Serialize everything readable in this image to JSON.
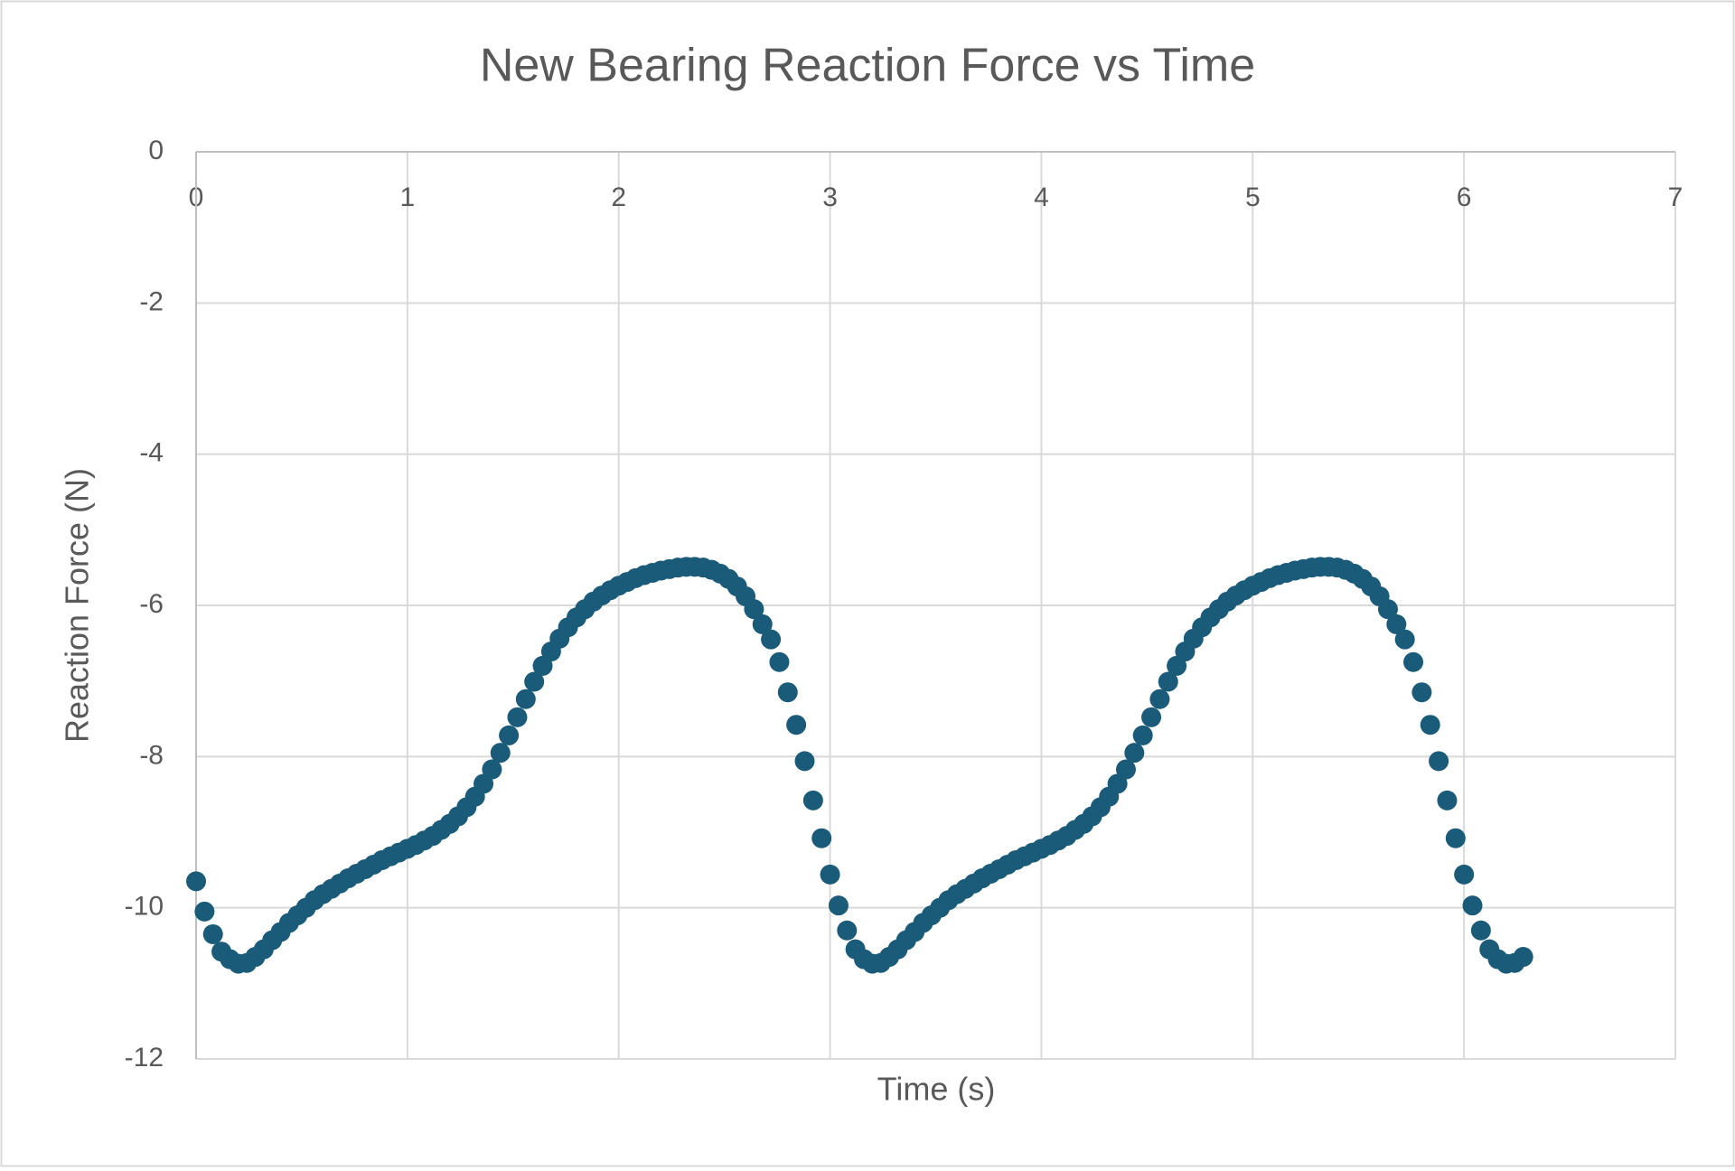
{
  "chart_data": {
    "type": "scatter",
    "title": "New Bearing Reaction Force vs Time",
    "x_label": "Time (s)",
    "y_label": "Reaction Force (N)",
    "color": "#1a5b79",
    "grid": true,
    "xlim": [
      0,
      7
    ],
    "xticks": [
      0,
      1,
      2,
      3,
      4,
      5,
      6,
      7
    ],
    "ylim": [
      -12,
      0
    ],
    "yticks": [
      -12,
      -10,
      -8,
      -6,
      -4,
      -2,
      0
    ],
    "x": [
      0,
      0.04,
      0.08,
      0.12,
      0.16,
      0.2,
      0.24,
      0.28,
      0.32,
      0.36,
      0.4,
      0.44,
      0.48,
      0.52,
      0.56,
      0.6,
      0.64,
      0.68,
      0.72,
      0.76,
      0.8,
      0.84,
      0.88,
      0.92,
      0.96,
      1,
      1.04,
      1.08,
      1.12,
      1.16,
      1.2,
      1.24,
      1.28,
      1.32,
      1.36,
      1.4,
      1.44,
      1.48,
      1.52,
      1.56,
      1.6,
      1.64,
      1.68,
      1.72,
      1.76,
      1.8,
      1.84,
      1.88,
      1.92,
      1.96,
      2,
      2.04,
      2.08,
      2.12,
      2.16,
      2.2,
      2.24,
      2.28,
      2.32,
      2.36,
      2.4,
      2.44,
      2.48,
      2.52,
      2.56,
      2.6,
      2.64,
      2.68,
      2.72,
      2.76,
      2.8,
      2.84,
      2.88,
      2.92,
      2.96,
      3,
      3.04,
      3.08,
      3.12,
      3.16,
      3.2,
      3.24,
      3.28,
      3.32,
      3.36,
      3.4,
      3.44,
      3.48,
      3.52,
      3.56,
      3.6,
      3.64,
      3.68,
      3.72,
      3.76,
      3.8,
      3.84,
      3.88,
      3.92,
      3.96,
      4,
      4.04,
      4.08,
      4.12,
      4.16,
      4.2,
      4.24,
      4.28,
      4.32,
      4.36,
      4.4,
      4.44,
      4.48,
      4.52,
      4.56,
      4.6,
      4.64,
      4.68,
      4.72,
      4.76,
      4.8,
      4.84,
      4.88,
      4.92,
      4.96,
      5,
      5.04,
      5.08,
      5.12,
      5.16,
      5.2,
      5.24,
      5.28,
      5.32,
      5.36,
      5.4,
      5.44,
      5.48,
      5.52,
      5.56,
      5.6,
      5.64,
      5.68,
      5.72,
      5.76,
      5.8,
      5.84,
      5.88,
      5.92,
      5.96,
      6,
      6.04,
      6.08,
      6.12,
      6.16,
      6.2,
      6.24,
      6.28
    ],
    "values": [
      -9.65,
      -10.05,
      -10.35,
      -10.58,
      -10.68,
      -10.74,
      -10.73,
      -10.65,
      -10.55,
      -10.43,
      -10.32,
      -10.2,
      -10.1,
      -10.0,
      -9.9,
      -9.82,
      -9.75,
      -9.68,
      -9.61,
      -9.55,
      -9.49,
      -9.43,
      -9.37,
      -9.32,
      -9.27,
      -9.22,
      -9.17,
      -9.11,
      -9.05,
      -8.97,
      -8.89,
      -8.79,
      -8.67,
      -8.53,
      -8.36,
      -8.17,
      -7.95,
      -7.72,
      -7.48,
      -7.24,
      -7.01,
      -6.8,
      -6.61,
      -6.44,
      -6.29,
      -6.16,
      -6.05,
      -5.95,
      -5.87,
      -5.8,
      -5.74,
      -5.69,
      -5.64,
      -5.6,
      -5.57,
      -5.54,
      -5.52,
      -5.5,
      -5.49,
      -5.49,
      -5.5,
      -5.53,
      -5.58,
      -5.65,
      -5.75,
      -5.88,
      -6.05,
      -6.25,
      -6.45,
      -6.75,
      -7.15,
      -7.58,
      -8.06,
      -8.58,
      -9.08,
      -9.56,
      -9.97,
      -10.3,
      -10.55,
      -10.68,
      -10.74,
      -10.73,
      -10.65,
      -10.55,
      -10.43,
      -10.32,
      -10.2,
      -10.1,
      -10.0,
      -9.9,
      -9.82,
      -9.75,
      -9.68,
      -9.61,
      -9.55,
      -9.49,
      -9.43,
      -9.37,
      -9.32,
      -9.27,
      -9.22,
      -9.17,
      -9.11,
      -9.05,
      -8.97,
      -8.89,
      -8.79,
      -8.67,
      -8.53,
      -8.36,
      -8.17,
      -7.95,
      -7.72,
      -7.48,
      -7.24,
      -7.01,
      -6.8,
      -6.61,
      -6.44,
      -6.29,
      -6.16,
      -6.05,
      -5.95,
      -5.87,
      -5.8,
      -5.74,
      -5.69,
      -5.64,
      -5.6,
      -5.57,
      -5.54,
      -5.52,
      -5.5,
      -5.49,
      -5.49,
      -5.5,
      -5.53,
      -5.58,
      -5.65,
      -5.75,
      -5.88,
      -6.05,
      -6.25,
      -6.45,
      -6.75,
      -7.15,
      -7.58,
      -8.06,
      -8.58,
      -9.08,
      -9.56,
      -9.97,
      -10.3,
      -10.55,
      -10.68,
      -10.74,
      -10.73,
      -10.65
    ]
  }
}
